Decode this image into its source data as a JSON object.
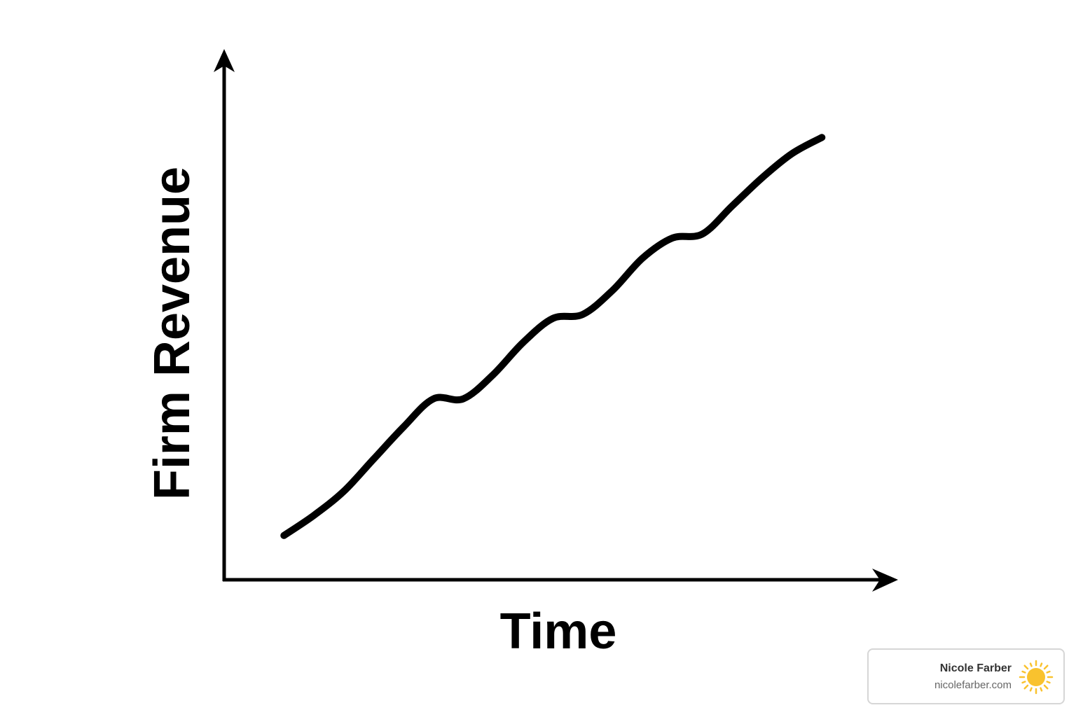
{
  "chart_data": {
    "type": "line",
    "xlabel": "Time",
    "ylabel": "Firm Revenue",
    "x": [
      0,
      1,
      2,
      3,
      4,
      5,
      6,
      7,
      8,
      9,
      10,
      11,
      12,
      13,
      14,
      15,
      16,
      17,
      18
    ],
    "values": [
      0.11,
      0.16,
      0.22,
      0.3,
      0.38,
      0.45,
      0.45,
      0.51,
      0.59,
      0.65,
      0.66,
      0.72,
      0.8,
      0.85,
      0.86,
      0.93,
      1.0,
      1.06,
      1.1
    ],
    "xlim": [
      -2,
      20.5
    ],
    "ylim": [
      0,
      1.32
    ],
    "grid": false,
    "ticks": false,
    "line_color": "#000000"
  },
  "watermark": {
    "name": "Nicole Farber",
    "site": "nicolefarber.com",
    "icon": "sun-icon",
    "icon_color": "#F9C22E"
  }
}
